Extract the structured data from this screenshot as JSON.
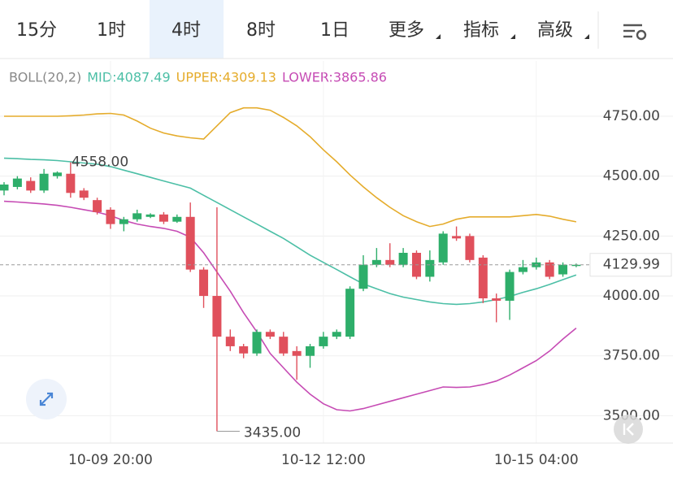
{
  "tabs": [
    "15分",
    "1时",
    "4时",
    "8时",
    "1日",
    "更多",
    "指标",
    "高级"
  ],
  "active_tab": 2,
  "chart_data": {
    "type": "candlestick",
    "indicator": "BOLL(20,2)",
    "categories": [
      null,
      null,
      null,
      null,
      null,
      null,
      null,
      null,
      "10-09 20:00",
      null,
      null,
      null,
      null,
      null,
      null,
      null,
      null,
      null,
      null,
      null,
      null,
      null,
      null,
      null,
      "10-12 12:00",
      null,
      null,
      null,
      null,
      null,
      null,
      null,
      null,
      null,
      null,
      null,
      null,
      null,
      null,
      null,
      "10-15 04:00",
      null,
      null,
      null
    ],
    "open": [
      4440,
      4455,
      4480,
      4440,
      4500,
      4510,
      4440,
      4400,
      4360,
      4300,
      4320,
      4330,
      4340,
      4310,
      4330,
      4110,
      4000,
      3830,
      3790,
      3760,
      3850,
      3830,
      3770,
      3750,
      3790,
      3830,
      3830,
      4030,
      4130,
      4150,
      4130,
      4180,
      4080,
      4140,
      4250,
      4250,
      4160,
      3990,
      3980,
      4100,
      4120,
      4140,
      4090,
      4125
    ],
    "high": [
      4475,
      4500,
      4495,
      4530,
      4520,
      4558,
      4450,
      4410,
      4370,
      4330,
      4360,
      4345,
      4350,
      4340,
      4390,
      4120,
      4370,
      3860,
      3800,
      3860,
      3860,
      3850,
      3790,
      3800,
      3850,
      3860,
      4040,
      4170,
      4200,
      4220,
      4200,
      4190,
      4190,
      4270,
      4290,
      4260,
      4170,
      4010,
      4110,
      4150,
      4160,
      4150,
      4140,
      4135
    ],
    "low": [
      4420,
      4445,
      4430,
      4430,
      4490,
      4410,
      4400,
      4340,
      4280,
      4270,
      4310,
      4325,
      4300,
      4305,
      4100,
      3950,
      3435,
      3770,
      3740,
      3750,
      3820,
      3750,
      3650,
      3700,
      3780,
      3820,
      3820,
      4020,
      4120,
      4120,
      4120,
      4070,
      4060,
      4130,
      4230,
      4140,
      3970,
      3890,
      3900,
      4090,
      4110,
      4070,
      4080,
      4120
    ],
    "close": [
      4465,
      4490,
      4440,
      4510,
      4515,
      4430,
      4410,
      4350,
      4300,
      4320,
      4345,
      4340,
      4310,
      4330,
      4110,
      4000,
      3830,
      3790,
      3760,
      3850,
      3830,
      3760,
      3750,
      3790,
      3830,
      3850,
      4030,
      4130,
      4150,
      4130,
      4180,
      4080,
      4150,
      4260,
      4240,
      4150,
      3990,
      3980,
      4100,
      4120,
      4140,
      4080,
      4130,
      4130
    ],
    "up_color": "#2eae6a",
    "down_color": "#e0505c",
    "series": [
      {
        "name": "MID:4087.49",
        "color": "#4cbfa6",
        "values": [
          4575,
          4573,
          4570,
          4568,
          4565,
          4560,
          4555,
          4550,
          4540,
          4525,
          4510,
          4495,
          4480,
          4465,
          4450,
          4420,
          4390,
          4360,
          4330,
          4300,
          4270,
          4240,
          4205,
          4170,
          4140,
          4110,
          4080,
          4050,
          4030,
          4010,
          3995,
          3985,
          3975,
          3968,
          3965,
          3968,
          3975,
          3985,
          3998,
          4015,
          4030,
          4048,
          4068,
          4087.49
        ]
      },
      {
        "name": "UPPER:4309.13",
        "color": "#e5ac2c",
        "values": [
          4750,
          4750,
          4750,
          4750,
          4750,
          4752,
          4755,
          4760,
          4762,
          4755,
          4730,
          4700,
          4680,
          4668,
          4660,
          4655,
          4710,
          4765,
          4785,
          4785,
          4775,
          4745,
          4710,
          4665,
          4610,
          4560,
          4505,
          4455,
          4410,
          4370,
          4335,
          4310,
          4290,
          4300,
          4320,
          4330,
          4330,
          4330,
          4330,
          4335,
          4340,
          4333,
          4320,
          4309.13
        ]
      },
      {
        "name": "LOWER:3865.86",
        "color": "#c64bb4",
        "values": [
          4395,
          4392,
          4388,
          4384,
          4378,
          4370,
          4360,
          4350,
          4335,
          4315,
          4300,
          4290,
          4282,
          4270,
          4245,
          4180,
          4100,
          4020,
          3930,
          3850,
          3760,
          3700,
          3640,
          3590,
          3550,
          3525,
          3520,
          3530,
          3545,
          3560,
          3575,
          3590,
          3605,
          3620,
          3618,
          3620,
          3630,
          3645,
          3670,
          3700,
          3730,
          3770,
          3820,
          3865.86
        ]
      }
    ],
    "max_label": "4558.00",
    "min_label": "3435.00",
    "last_price": 4129.99,
    "ylim": [
      3386,
      4862
    ],
    "yticks": [
      {
        "value": 3500,
        "label": "3500.00"
      },
      {
        "value": 3750,
        "label": "3750.00"
      },
      {
        "value": 4000,
        "label": "4000.00"
      },
      {
        "value": 4250,
        "label": "4250.00"
      },
      {
        "value": 4500,
        "label": "4500.00"
      },
      {
        "value": 4750,
        "label": "4750.00"
      }
    ],
    "grid": true
  }
}
